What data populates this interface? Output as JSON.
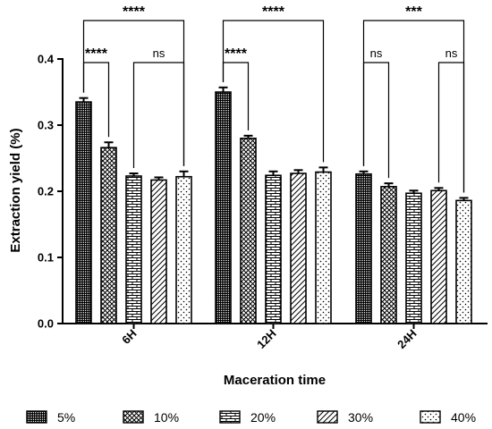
{
  "chart_data": {
    "type": "bar",
    "xlabel": "Maceration time",
    "ylabel": "Extraction yield (%)",
    "ylim": [
      0,
      0.4
    ],
    "yticks": [
      "0.0",
      "0.1",
      "0.2",
      "0.3",
      "0.4"
    ],
    "categories": [
      "6H",
      "12H",
      "24H"
    ],
    "series": [
      {
        "name": "5%",
        "pattern": "dense-grid",
        "values": [
          0.335,
          0.35,
          0.226
        ],
        "errors": [
          0.006,
          0.007,
          0.004
        ]
      },
      {
        "name": "10%",
        "pattern": "diamond",
        "values": [
          0.266,
          0.28,
          0.207
        ],
        "errors": [
          0.008,
          0.004,
          0.005
        ]
      },
      {
        "name": "20%",
        "pattern": "brick",
        "values": [
          0.223,
          0.224,
          0.197
        ],
        "errors": [
          0.004,
          0.006,
          0.004
        ]
      },
      {
        "name": "30%",
        "pattern": "diagonal",
        "values": [
          0.217,
          0.227,
          0.201
        ],
        "errors": [
          0.004,
          0.005,
          0.004
        ]
      },
      {
        "name": "40%",
        "pattern": "dots",
        "values": [
          0.222,
          0.229,
          0.186
        ],
        "errors": [
          0.008,
          0.007,
          0.004
        ]
      }
    ],
    "significance": [
      {
        "group": 0,
        "from": 0,
        "to": 4,
        "label": "****",
        "level": "outer"
      },
      {
        "group": 0,
        "from": 0,
        "to": 1,
        "label": "****",
        "level": "inner"
      },
      {
        "group": 0,
        "from": 2,
        "to": 4,
        "label": "ns",
        "level": "inner"
      },
      {
        "group": 1,
        "from": 0,
        "to": 4,
        "label": "****",
        "level": "outer"
      },
      {
        "group": 1,
        "from": 0,
        "to": 1,
        "label": "****",
        "level": "inner"
      },
      {
        "group": 2,
        "from": 0,
        "to": 4,
        "label": "***",
        "level": "outer"
      },
      {
        "group": 2,
        "from": 0,
        "to": 1,
        "label": "ns",
        "level": "inner"
      },
      {
        "group": 2,
        "from": 3,
        "to": 4,
        "label": "ns",
        "level": "inner"
      }
    ],
    "grid": false,
    "legend_position": "bottom"
  }
}
